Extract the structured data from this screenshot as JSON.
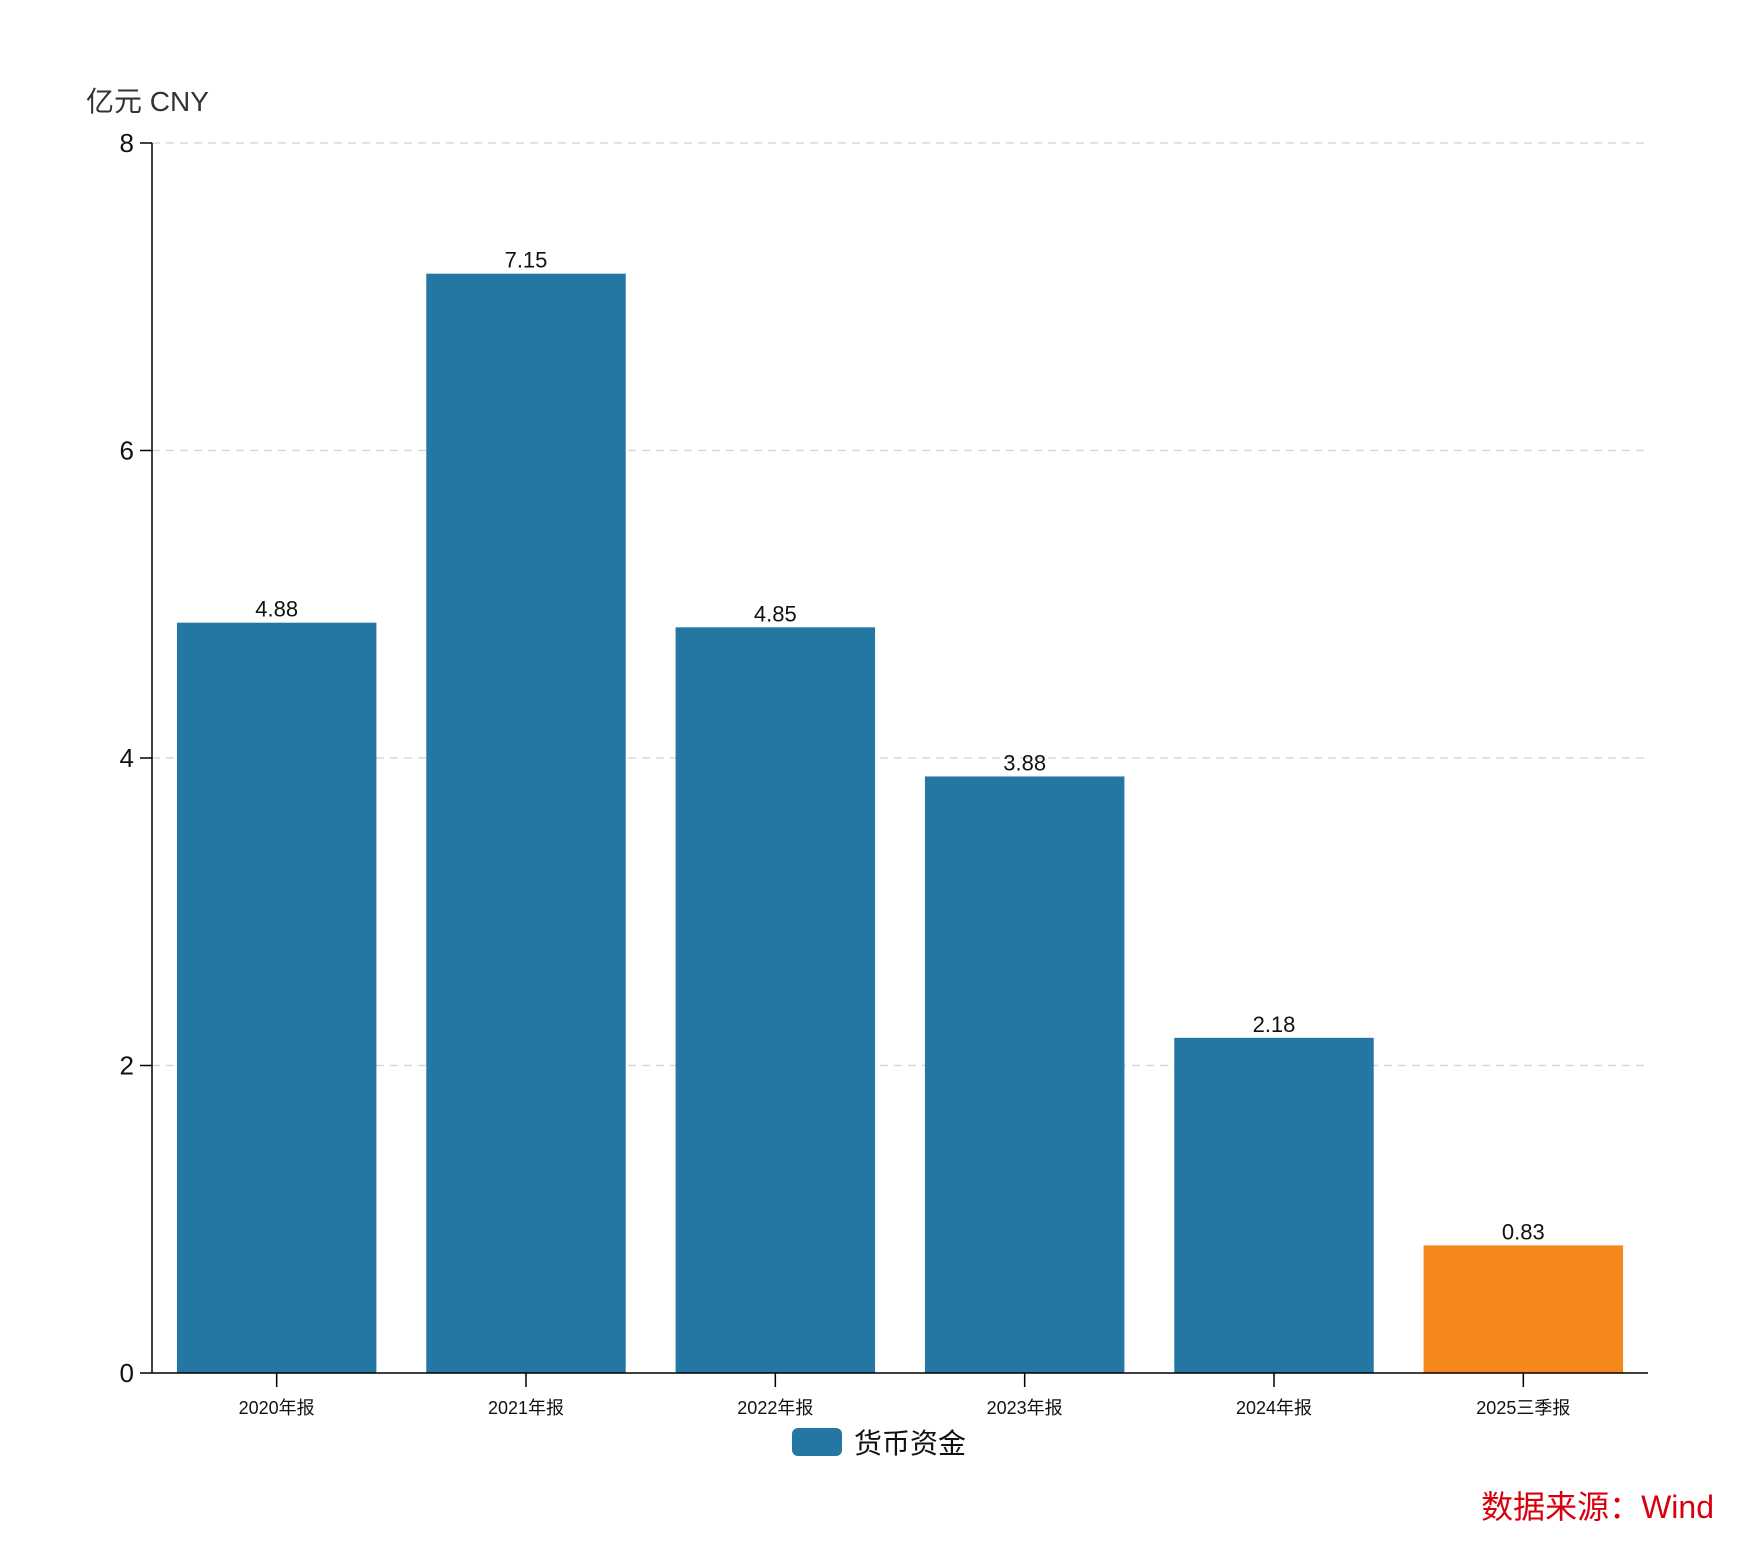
{
  "chart_data": {
    "type": "bar",
    "unit_label": "亿元  CNY",
    "categories": [
      "2020年报",
      "2021年报",
      "2022年报",
      "2023年报",
      "2024年报",
      "2025三季报"
    ],
    "series": [
      {
        "name": "货币资金",
        "values": [
          4.88,
          7.15,
          4.85,
          3.88,
          2.18,
          0.83
        ]
      }
    ],
    "value_labels": [
      "4.88",
      "7.15",
      "4.85",
      "3.88",
      "2.18",
      "0.83"
    ],
    "ylim": [
      0,
      8
    ],
    "yticks": [
      0,
      2,
      4,
      6,
      8
    ],
    "ytick_labels": [
      "0",
      "2",
      "4",
      "6",
      "8"
    ],
    "grid": true,
    "legend_position": "bottom-center",
    "colors": {
      "primary": "#2477a3",
      "highlight": "#f5881b",
      "highlight_index": 5,
      "grid": "#d8d8d8",
      "axis": "#000000"
    }
  },
  "source_note": "数据来源：Wind",
  "source_color": "#d9000d"
}
